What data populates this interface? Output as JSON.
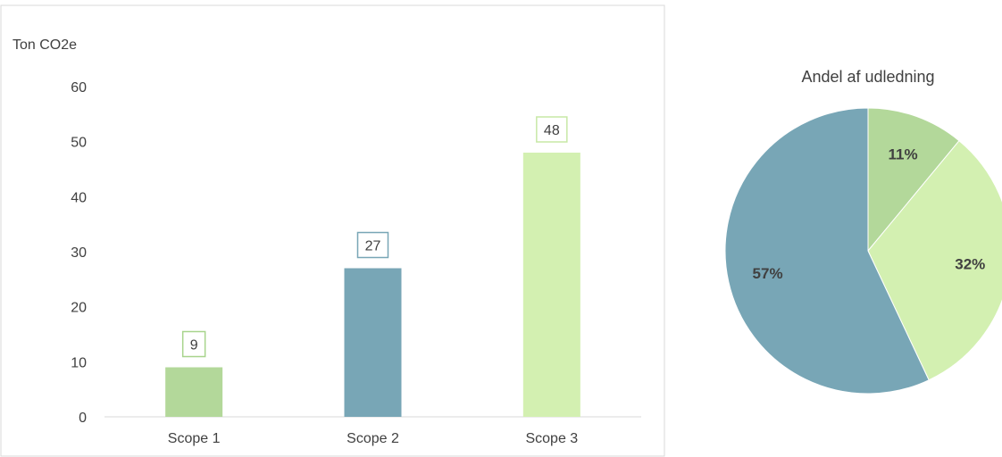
{
  "chart_data": [
    {
      "type": "bar",
      "ylabel": "Ton CO2e",
      "categories": [
        "Scope 1",
        "Scope 2",
        "Scope 3"
      ],
      "values": [
        9,
        27,
        48
      ],
      "data_labels": [
        "9",
        "27",
        "48"
      ],
      "bar_colors": [
        "#b3d89a",
        "#78a6b6",
        "#d3f0b1"
      ],
      "label_border_colors": [
        "#a8d48c",
        "#78a6b6",
        "#c7e9a6"
      ],
      "ylim": [
        0,
        60
      ],
      "yticks": [
        0,
        10,
        20,
        30,
        40,
        50,
        60
      ],
      "grid": false,
      "legend": "none"
    },
    {
      "type": "pie",
      "title": "Andel af udledning",
      "slices": [
        {
          "label": "11%",
          "value": 11,
          "color": "#b3d89a"
        },
        {
          "label": "32%",
          "value": 32,
          "color": "#d3f0b1"
        },
        {
          "label": "57%",
          "value": 57,
          "color": "#78a6b6"
        }
      ],
      "legend": "none"
    }
  ]
}
